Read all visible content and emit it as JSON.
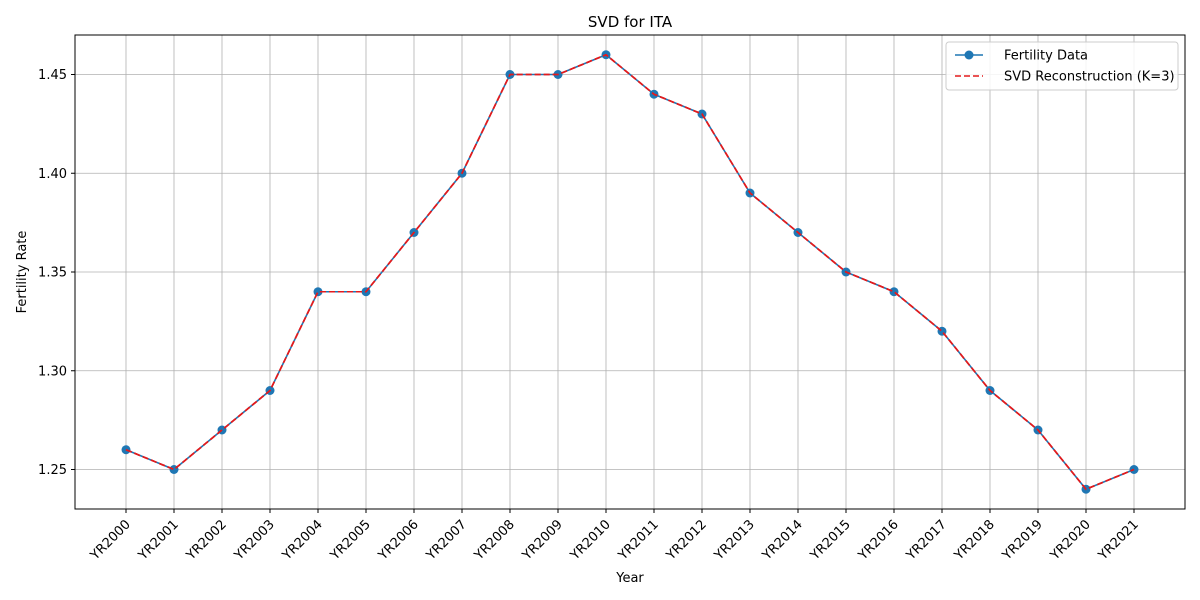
{
  "chart_data": {
    "type": "line",
    "title": "SVD for ITA",
    "xlabel": "Year",
    "ylabel": "Fertility Rate",
    "categories": [
      "YR2000",
      "YR2001",
      "YR2002",
      "YR2003",
      "YR2004",
      "YR2005",
      "YR2006",
      "YR2007",
      "YR2008",
      "YR2009",
      "YR2010",
      "YR2011",
      "YR2012",
      "YR2013",
      "YR2014",
      "YR2015",
      "YR2016",
      "YR2017",
      "YR2018",
      "YR2019",
      "YR2020",
      "YR2021"
    ],
    "ylim": [
      1.23,
      1.47
    ],
    "yticks": [
      1.25,
      1.3,
      1.35,
      1.4,
      1.45
    ],
    "ytick_labels": [
      "1.25",
      "1.30",
      "1.35",
      "1.40",
      "1.45"
    ],
    "grid": true,
    "legend_position": "top-right",
    "series": [
      {
        "name": "Fertility Data",
        "color": "#1f77b4",
        "style": "solid-with-markers",
        "values": [
          1.26,
          1.25,
          1.27,
          1.29,
          1.34,
          1.34,
          1.37,
          1.4,
          1.45,
          1.45,
          1.46,
          1.44,
          1.43,
          1.39,
          1.37,
          1.35,
          1.34,
          1.32,
          1.29,
          1.27,
          1.24,
          1.25
        ]
      },
      {
        "name": "SVD Reconstruction (K=3)",
        "color": "#e41a1c",
        "style": "dashed",
        "values": [
          1.26,
          1.25,
          1.27,
          1.29,
          1.34,
          1.34,
          1.37,
          1.4,
          1.45,
          1.45,
          1.46,
          1.44,
          1.43,
          1.39,
          1.37,
          1.35,
          1.34,
          1.32,
          1.29,
          1.27,
          1.24,
          1.25
        ]
      }
    ]
  }
}
